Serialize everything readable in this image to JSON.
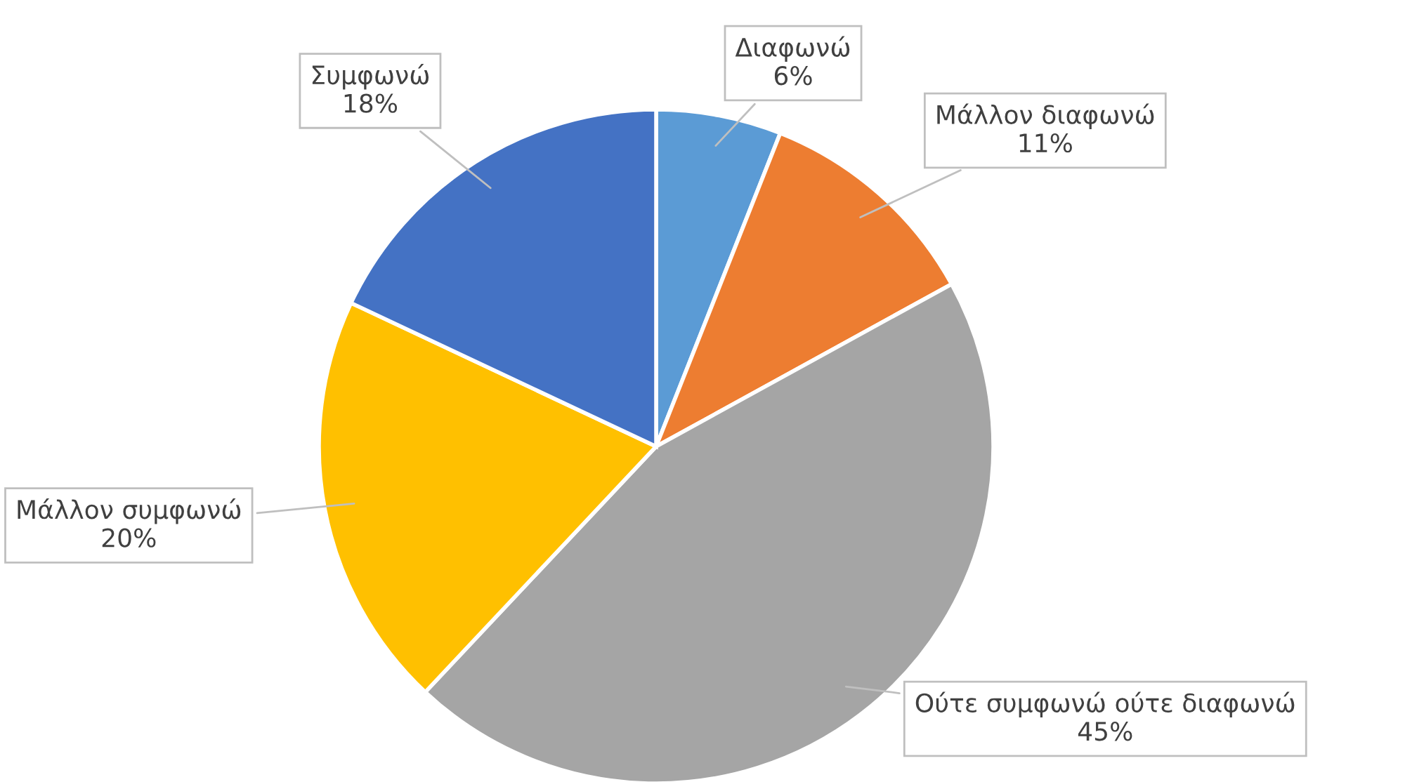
{
  "chart_data": {
    "type": "pie",
    "categories": [
      "Διαφωνώ",
      "Μάλλον διαφωνώ",
      "Ούτε συμφωνώ ούτε διαφωνώ",
      "Μάλλον συμφωνώ",
      "Συμφωνώ"
    ],
    "values": [
      6,
      11,
      45,
      20,
      18
    ],
    "colors": [
      "#5b9bd5",
      "#ed7d31",
      "#a5a5a5",
      "#ffc000",
      "#4472c4"
    ],
    "value_labels": [
      "6%",
      "11%",
      "45%",
      "20%",
      "18%"
    ]
  }
}
